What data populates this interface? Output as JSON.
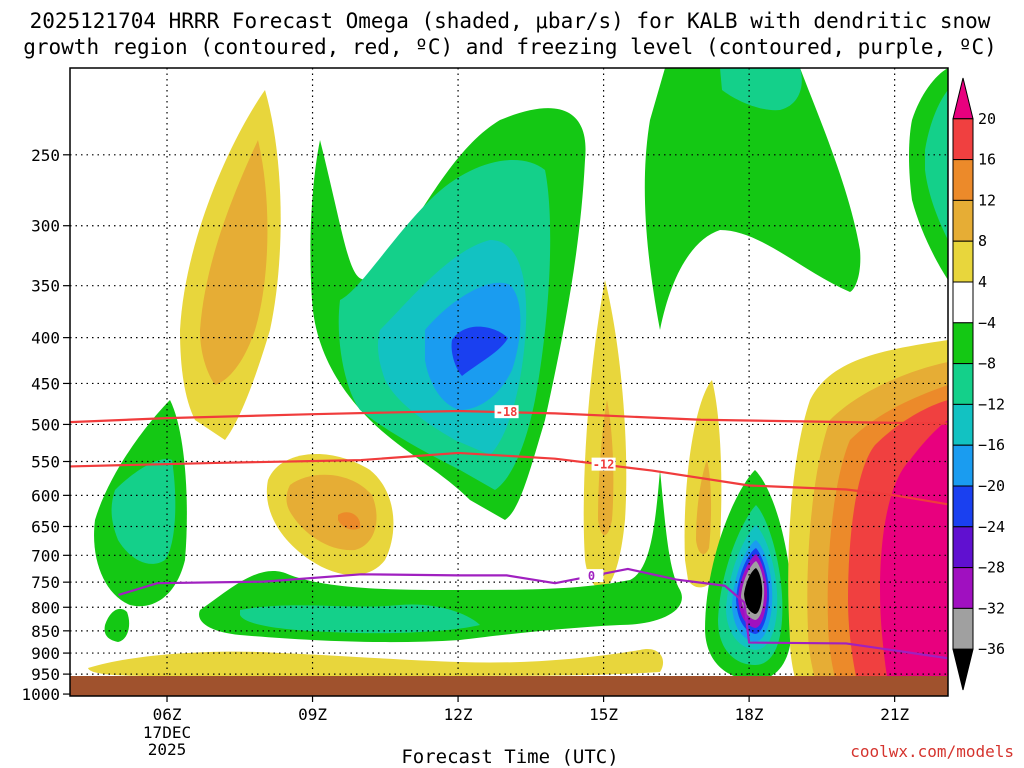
{
  "chart_data": {
    "type": "heatmap",
    "title_lines": [
      "2025121704 HRRR Forecast Omega (shaded, μbar/s) for KALB with dendritic snow",
      "growth region (contoured, red, ºC) and freezing level (contoured, purple, ºC)"
    ],
    "xlabel": "Forecast Time (UTC)",
    "credit": "coolwx.com/models",
    "x_ticks": [
      {
        "hour": 6,
        "label": "06Z",
        "sub": [
          "17DEC",
          "2025"
        ]
      },
      {
        "hour": 9,
        "label": "09Z",
        "sub": []
      },
      {
        "hour": 12,
        "label": "12Z",
        "sub": []
      },
      {
        "hour": 15,
        "label": "15Z",
        "sub": []
      },
      {
        "hour": 18,
        "label": "18Z",
        "sub": []
      },
      {
        "hour": 21,
        "label": "21Z",
        "sub": []
      }
    ],
    "x_range": [
      4,
      22.1
    ],
    "y_range_hpa": [
      1005,
      200
    ],
    "y_ticks": [
      250,
      300,
      350,
      400,
      450,
      500,
      550,
      600,
      650,
      700,
      750,
      800,
      850,
      900,
      950,
      1000
    ],
    "colorbar": {
      "labels": [
        "20",
        "16",
        "12",
        "8",
        "4",
        "−4",
        "−8",
        "−12",
        "−16",
        "−20",
        "−24",
        "−28",
        "−32",
        "−36"
      ],
      "colors": [
        "#e8007e",
        "#f04040",
        "#ec8a2a",
        "#e6ad35",
        "#e8d63c",
        "#ffffff",
        "#14c814",
        "#14d08a",
        "#12c2c2",
        "#1a9cf0",
        "#1a40f0",
        "#6010d0",
        "#a010c0",
        "#a0a0a0",
        "#000000"
      ]
    },
    "contours": [
      {
        "name": "snow-growth-upper",
        "label": "-18",
        "color": "#f03c3c",
        "points": [
          [
            4,
            497
          ],
          [
            6,
            492
          ],
          [
            9,
            487
          ],
          [
            12,
            483
          ],
          [
            14,
            486
          ],
          [
            17,
            494
          ],
          [
            20,
            497
          ],
          [
            22.1,
            499
          ]
        ]
      },
      {
        "name": "snow-growth-lower",
        "label": "-12",
        "color": "#f03c3c",
        "points": [
          [
            4,
            557
          ],
          [
            7,
            552
          ],
          [
            10,
            548
          ],
          [
            12,
            538
          ],
          [
            14,
            546
          ],
          [
            16,
            563
          ],
          [
            18,
            585
          ],
          [
            20,
            591
          ],
          [
            21,
            600
          ],
          [
            22.1,
            614
          ]
        ]
      },
      {
        "name": "freezing-level",
        "label": "0",
        "color": "#a020c0",
        "points": [
          [
            5,
            775
          ],
          [
            5.8,
            752
          ],
          [
            8,
            749
          ],
          [
            10,
            735
          ],
          [
            12,
            737
          ],
          [
            13,
            737
          ],
          [
            14,
            752
          ],
          [
            15.5,
            725
          ],
          [
            16.5,
            745
          ],
          [
            17.5,
            757
          ],
          [
            17.9,
            790
          ],
          [
            18,
            876
          ],
          [
            20,
            878
          ],
          [
            22.1,
            912
          ]
        ]
      }
    ],
    "omega_regions": [
      {
        "name": "magenta-sink-east",
        "value": 20,
        "center": [
          21.6,
          760
        ]
      },
      {
        "name": "black-core-18z",
        "value": -36,
        "center": [
          18,
          825
        ]
      },
      {
        "name": "blue-core-12z",
        "value": -24,
        "center": [
          12,
          410
        ]
      }
    ]
  }
}
